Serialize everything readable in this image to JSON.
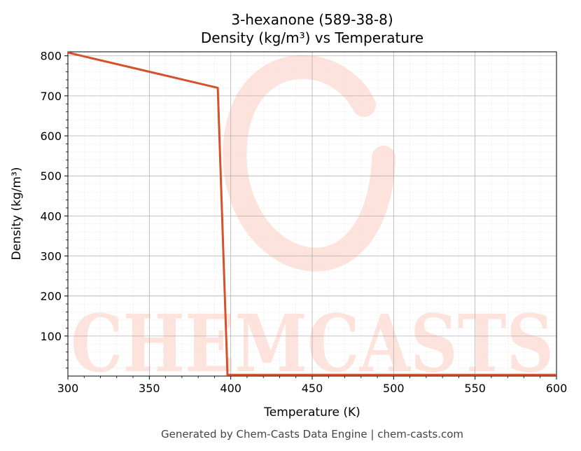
{
  "chart_data": {
    "type": "line",
    "title": "3-hexanone (589-38-8)",
    "subtitle": "Density (kg/m³) vs Temperature",
    "xlabel": "Temperature (K)",
    "ylabel": "Density (kg/m³)",
    "xlim": [
      300,
      600
    ],
    "ylim": [
      0,
      810
    ],
    "xticks": [
      300,
      350,
      400,
      450,
      500,
      550,
      600
    ],
    "yticks": [
      100,
      200,
      300,
      400,
      500,
      600,
      700,
      800
    ],
    "grid": true,
    "series": [
      {
        "color": "#d5512a",
        "x": [
          300,
          392,
          398,
          600
        ],
        "y": [
          808,
          720,
          3,
          3
        ]
      }
    ]
  },
  "footer": "Generated by Chem-Casts Data Engine | chem-casts.com",
  "watermark": "CHEMCASTS",
  "colors": {
    "line": "#d5512a",
    "watermark": "#fde0d8"
  }
}
